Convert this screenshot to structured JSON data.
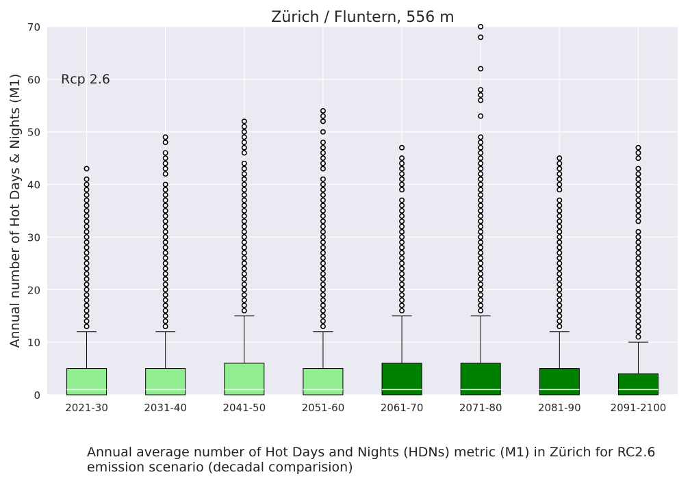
{
  "chart_data": {
    "type": "boxplot",
    "title": "Zürich / Fluntern, 556 m",
    "annotation": "Rcp 2.6",
    "xlabel": "",
    "ylabel": "Annual number of Hot Days & Nights (M1)",
    "ylim": [
      0,
      70
    ],
    "yticks": [
      0,
      10,
      20,
      30,
      40,
      50,
      60,
      70
    ],
    "grid": true,
    "categories": [
      "2021-30",
      "2031-40",
      "2041-50",
      "2051-60",
      "2061-70",
      "2071-80",
      "2081-90",
      "2091-2100"
    ],
    "colors": [
      "#90ee90",
      "#90ee90",
      "#90ee90",
      "#90ee90",
      "#008000",
      "#008000",
      "#008000",
      "#008000"
    ],
    "boxes": [
      {
        "q1": 0,
        "median": 1,
        "q3": 5,
        "whisker_low": 0,
        "whisker_high": 12,
        "outliers": [
          13,
          14,
          15,
          16,
          17,
          18,
          19,
          20,
          21,
          22,
          23,
          24,
          25,
          26,
          27,
          28,
          29,
          30,
          31,
          32,
          33,
          34,
          35,
          36,
          37,
          38,
          39,
          40,
          41,
          43
        ]
      },
      {
        "q1": 0,
        "median": 1,
        "q3": 5,
        "whisker_low": 0,
        "whisker_high": 12,
        "outliers": [
          13,
          14,
          15,
          16,
          17,
          18,
          19,
          20,
          21,
          22,
          23,
          24,
          25,
          26,
          27,
          28,
          29,
          30,
          31,
          32,
          33,
          34,
          35,
          36,
          37,
          38,
          39,
          40,
          42,
          43,
          44,
          45,
          46,
          48,
          49
        ]
      },
      {
        "q1": 0,
        "median": 1,
        "q3": 6,
        "whisker_low": 0,
        "whisker_high": 15,
        "outliers": [
          16,
          17,
          18,
          19,
          20,
          21,
          22,
          23,
          24,
          25,
          26,
          27,
          28,
          29,
          30,
          31,
          32,
          33,
          34,
          35,
          36,
          37,
          38,
          39,
          40,
          41,
          42,
          43,
          44,
          46,
          47,
          48,
          49,
          50,
          51,
          52
        ]
      },
      {
        "q1": 0,
        "median": 1,
        "q3": 5,
        "whisker_low": 0,
        "whisker_high": 12,
        "outliers": [
          13,
          14,
          15,
          16,
          17,
          18,
          19,
          20,
          21,
          22,
          23,
          24,
          25,
          26,
          27,
          28,
          29,
          30,
          31,
          32,
          33,
          34,
          35,
          36,
          37,
          38,
          39,
          40,
          41,
          43,
          44,
          45,
          46,
          47,
          48,
          50,
          52,
          53,
          54
        ]
      },
      {
        "q1": 0,
        "median": 1,
        "q3": 6,
        "whisker_low": 0,
        "whisker_high": 15,
        "outliers": [
          16,
          17,
          18,
          19,
          20,
          21,
          22,
          23,
          24,
          25,
          26,
          27,
          28,
          29,
          30,
          31,
          32,
          33,
          34,
          35,
          36,
          37,
          39,
          40,
          41,
          42,
          43,
          44,
          45,
          47
        ]
      },
      {
        "q1": 0,
        "median": 1,
        "q3": 6,
        "whisker_low": 0,
        "whisker_high": 15,
        "outliers": [
          16,
          17,
          18,
          19,
          20,
          21,
          22,
          23,
          24,
          25,
          26,
          27,
          28,
          29,
          30,
          31,
          32,
          33,
          34,
          35,
          36,
          37,
          38,
          39,
          40,
          41,
          42,
          43,
          44,
          45,
          46,
          47,
          48,
          49,
          53,
          56,
          57,
          58,
          62,
          68,
          70
        ]
      },
      {
        "q1": 0,
        "median": 1,
        "q3": 5,
        "whisker_low": 0,
        "whisker_high": 12,
        "outliers": [
          13,
          14,
          15,
          16,
          17,
          18,
          19,
          20,
          21,
          22,
          23,
          24,
          25,
          26,
          27,
          28,
          29,
          30,
          31,
          32,
          33,
          34,
          35,
          36,
          37,
          39,
          40,
          41,
          42,
          43,
          44,
          45
        ]
      },
      {
        "q1": 0,
        "median": 1,
        "q3": 4,
        "whisker_low": 0,
        "whisker_high": 10,
        "outliers": [
          11,
          12,
          13,
          14,
          15,
          16,
          17,
          18,
          19,
          20,
          21,
          22,
          23,
          24,
          25,
          26,
          27,
          28,
          29,
          30,
          31,
          33,
          34,
          35,
          36,
          37,
          38,
          39,
          40,
          41,
          42,
          43,
          45,
          46,
          47
        ]
      }
    ]
  },
  "caption": "Annual average number of Hot Days and Nights (HDNs) metric (M1) in Zürich for RC2.6 emission scenario (decadal comparision)",
  "colors": {
    "plot_background": "#eaeaf2",
    "grid": "#ffffff",
    "text": "#262626",
    "early_decades": "#90ee90",
    "late_decades": "#008000"
  }
}
